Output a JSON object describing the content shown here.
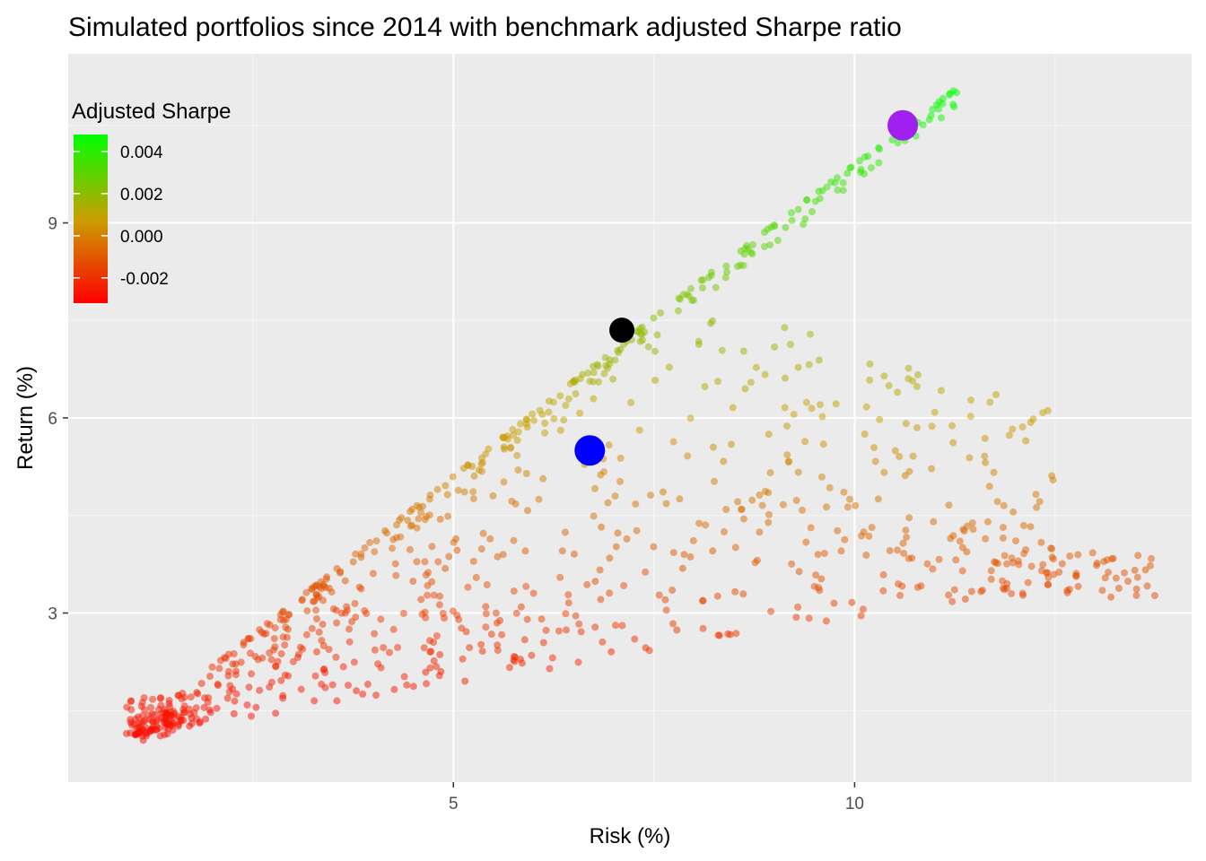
{
  "chart_data": {
    "type": "scatter",
    "title": "Simulated portfolios since 2014 with benchmark adjusted Sharpe ratio",
    "xlabel": "Risk (%)",
    "ylabel": "Return (%)",
    "xlim": [
      0.2,
      14.2
    ],
    "ylim": [
      0.4,
      11.6
    ],
    "x_ticks": [
      5,
      10
    ],
    "x_tick_labels": [
      "5",
      "10"
    ],
    "y_ticks": [
      3,
      6,
      9
    ],
    "y_tick_labels": [
      "3",
      "6",
      "9"
    ],
    "grid": true,
    "legend": {
      "title": "Adjusted Sharpe",
      "position": "top-left",
      "min": -0.0032,
      "max": 0.0048,
      "breaks": [
        0.004,
        0.002,
        0.0,
        -0.002
      ],
      "labels": [
        "0.004",
        "0.002",
        "0.000",
        "-0.002"
      ],
      "low_color": "#ff0000",
      "mid_color": "#c8a000",
      "high_color": "#00ff00"
    },
    "highlight_points": [
      {
        "x": 10.6,
        "y": 10.5,
        "color": "#a020f0"
      },
      {
        "x": 7.1,
        "y": 7.35,
        "color": "#000000"
      },
      {
        "x": 6.7,
        "y": 5.5,
        "color": "#0000ff"
      }
    ],
    "seed": 20140101,
    "n_points": 1000
  }
}
